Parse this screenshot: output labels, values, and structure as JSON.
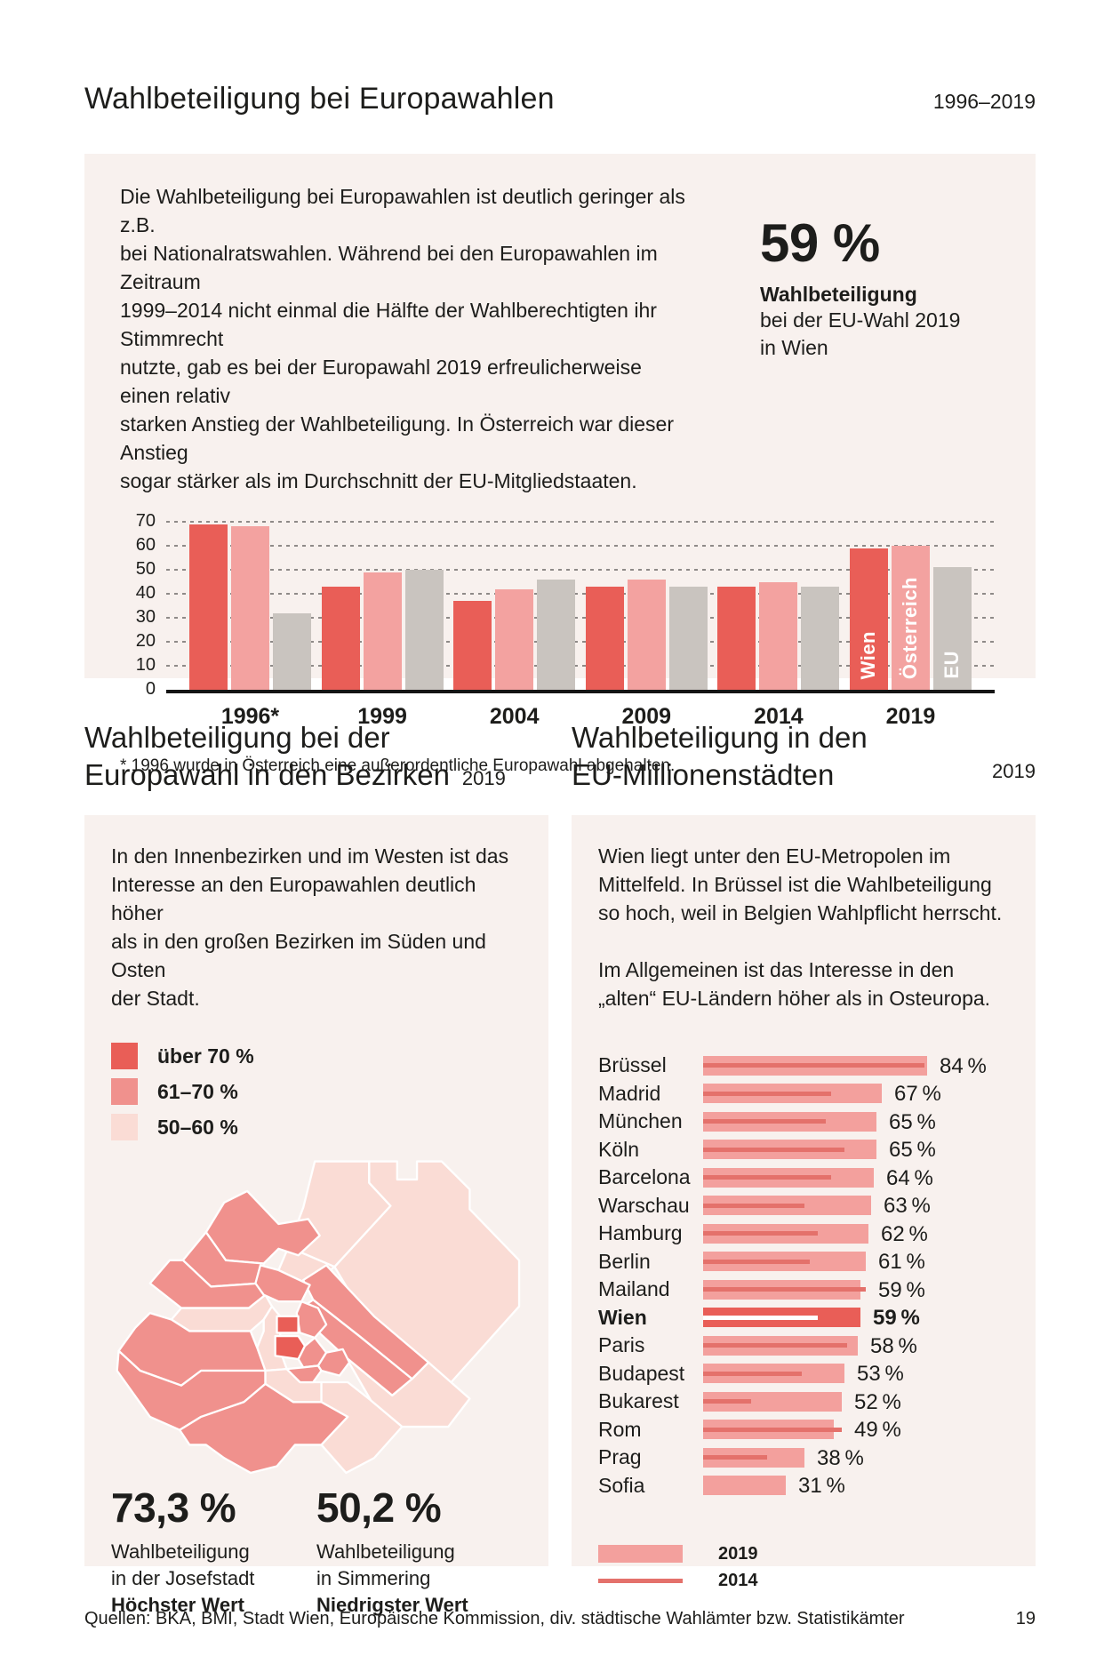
{
  "page": {
    "colors": {
      "box_bg": "#f8f1ee",
      "wien_red": "#e95e57",
      "oesterreich_pink": "#f3a2a0",
      "eu_gray": "#c9c4bf",
      "map_medium": "#f0918d",
      "map_light": "#fadcd5",
      "bar_2019": "#f3a09d",
      "line_2014": "#e4716b",
      "text": "#1d1d1b"
    },
    "footer": {
      "sources": "Quellen: BKA, BMI, Stadt Wien, Europäische Kommission, div. städtische Wahlämter bzw. Statistikämter",
      "page_number": "19"
    }
  },
  "header": {
    "title": "Wahlbeteiligung bei Europawahlen",
    "range": "1996–2019"
  },
  "intro": {
    "text": "Die Wahlbeteiligung bei Europawahlen ist deutlich geringer als z.B.\nbei Nationalratswahlen. Während bei den Europawahlen im Zeitraum\n1999–2014 nicht einmal die Hälfte der Wahlberechtigten ihr Stimmrecht\nnutzte, gab es bei der Europawahl 2019 erfreulicherweise einen relativ\nstarken Anstieg der Wahlbeteiligung. In Österreich war dieser Anstieg\nsogar stärker als im Durchschnitt der EU-Mitgliedstaaten.",
    "stat_value": "59 %",
    "stat_label_bold": "Wahlbeteiligung",
    "stat_label_rest": "bei der EU-Wahl 2019\nin Wien",
    "footnote": "* 1996 wurde in Österreich eine außerordentliche Europawahl abgehalten."
  },
  "chart_data": [
    {
      "type": "bar",
      "title": "Wahlbeteiligung bei Europawahlen 1996–2019",
      "categories": [
        "1996*",
        "1999",
        "2004",
        "2009",
        "2014",
        "2019"
      ],
      "series": [
        {
          "name": "Wien",
          "values": [
            69,
            43,
            37,
            43,
            43,
            59
          ]
        },
        {
          "name": "Österreich",
          "values": [
            68,
            49,
            42,
            46,
            45,
            60
          ]
        },
        {
          "name": "EU",
          "values": [
            32,
            50,
            46,
            43,
            43,
            51
          ]
        }
      ],
      "unit": "%",
      "ylim": [
        0,
        70
      ],
      "ytick_step": 10,
      "grid": "dashed-horizontal",
      "legend_position": "labels-inside-last-group-vertical"
    },
    {
      "type": "bar",
      "orientation": "horizontal",
      "title": "Wahlbeteiligung in den EU-Millionenstädten 2019",
      "categories": [
        "Brüssel",
        "Madrid",
        "München",
        "Köln",
        "Barcelona",
        "Warschau",
        "Hamburg",
        "Berlin",
        "Mailand",
        "Wien",
        "Paris",
        "Budapest",
        "Bukarest",
        "Rom",
        "Prag",
        "Sofia"
      ],
      "series": [
        {
          "name": "2019",
          "values": [
            84,
            67,
            65,
            65,
            64,
            63,
            62,
            61,
            59,
            59,
            58,
            53,
            52,
            49,
            38,
            31
          ]
        },
        {
          "name": "2014",
          "values": [
            83,
            48,
            46,
            53,
            48,
            38,
            43,
            40,
            61,
            43,
            54,
            37,
            18,
            52,
            24,
            null
          ]
        }
      ],
      "unit": "%",
      "highlight": "Wien",
      "xlim": [
        0,
        90
      ],
      "legend_position": "bottom-left"
    }
  ],
  "districts_section": {
    "title_line1": "Wahlbeteiligung bei der",
    "title_line2": "Europawahl in den Bezirken",
    "year": "2019",
    "text": "In den Innenbezirken und im Westen ist das\nInteresse an den Europawahlen deutlich höher\nals in den großen Bezirken im Süden und Osten\nder Stadt.",
    "legend": [
      {
        "label": "über 70 %",
        "color": "#e95e57",
        "level": "dark"
      },
      {
        "label": "61–70 %",
        "color": "#f0918d",
        "level": "medium"
      },
      {
        "label": "50–60 %",
        "color": "#fadcd5",
        "level": "light"
      }
    ],
    "stats": [
      {
        "value": "73,3 %",
        "sub": "Wahlbeteiligung\nin der Josefstadt",
        "bold": "Höchster Wert"
      },
      {
        "value": "50,2 %",
        "sub": "Wahlbeteiligung\nin Simmering",
        "bold": "Niedrigster Wert"
      }
    ]
  },
  "cities_section": {
    "title_line1": "Wahlbeteiligung in den",
    "title_line2": "EU-Millionenstädten",
    "year": "2019",
    "text1": "Wien liegt unter den EU-Metropolen im\nMittelfeld. In Brüssel ist die Wahlbeteiligung\nso hoch, weil in Belgien Wahlpflicht herrscht.",
    "text2": "Im Allgemeinen ist das Interesse in den\n„alten“ EU-Ländern höher als in Osteuropa.",
    "legend": [
      {
        "label": "2019",
        "style": "bar"
      },
      {
        "label": "2014",
        "style": "line"
      }
    ]
  }
}
